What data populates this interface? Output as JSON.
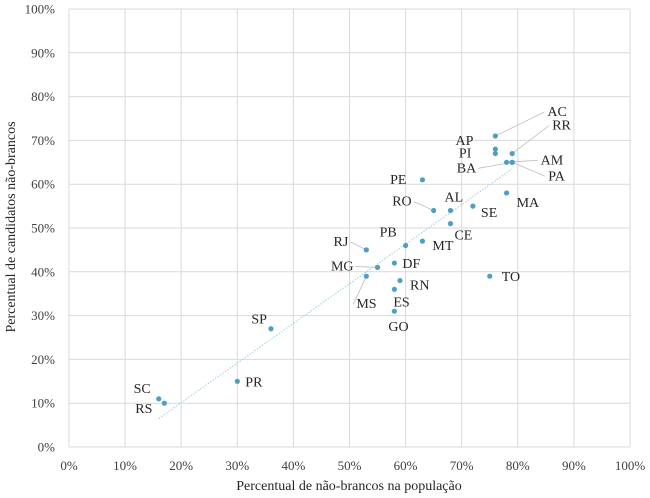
{
  "chart_data": {
    "type": "scatter",
    "xlabel": "Percentual de não-brancos na população",
    "ylabel": "Percentual de candidatos não-brancos",
    "xlim": [
      0,
      100
    ],
    "ylim": [
      0,
      100
    ],
    "x_ticks": [
      "0%",
      "10%",
      "20%",
      "30%",
      "40%",
      "50%",
      "60%",
      "70%",
      "80%",
      "90%",
      "100%"
    ],
    "y_ticks": [
      "0%",
      "10%",
      "20%",
      "30%",
      "40%",
      "50%",
      "60%",
      "70%",
      "80%",
      "90%",
      "100%"
    ],
    "grid": true,
    "trendline": {
      "x": [
        16,
        79
      ],
      "y": [
        6.5,
        63.5
      ],
      "style": "dotted"
    },
    "point_color": "#4f9ec4",
    "points": [
      {
        "label": "AC",
        "x": 76,
        "y": 71
      },
      {
        "label": "AP",
        "x": 76,
        "y": 68
      },
      {
        "label": "RR",
        "x": 79,
        "y": 67
      },
      {
        "label": "PI",
        "x": 76,
        "y": 67
      },
      {
        "label": "AM",
        "x": 78,
        "y": 65
      },
      {
        "label": "BA",
        "x": 79,
        "y": 65
      },
      {
        "label": "PA",
        "x": 79,
        "y": 65
      },
      {
        "label": "PE",
        "x": 63,
        "y": 61
      },
      {
        "label": "MA",
        "x": 78,
        "y": 58
      },
      {
        "label": "AL",
        "x": 68,
        "y": 54
      },
      {
        "label": "SE",
        "x": 72,
        "y": 55
      },
      {
        "label": "RO",
        "x": 65,
        "y": 54
      },
      {
        "label": "CE",
        "x": 68,
        "y": 51
      },
      {
        "label": "PB",
        "x": 60,
        "y": 46
      },
      {
        "label": "MT",
        "x": 63,
        "y": 47
      },
      {
        "label": "RJ",
        "x": 53,
        "y": 45
      },
      {
        "label": "DF",
        "x": 58,
        "y": 42
      },
      {
        "label": "MG",
        "x": 55,
        "y": 41
      },
      {
        "label": "MS",
        "x": 53,
        "y": 39
      },
      {
        "label": "RN",
        "x": 59,
        "y": 38
      },
      {
        "label": "TO",
        "x": 75,
        "y": 39
      },
      {
        "label": "ES",
        "x": 58,
        "y": 36
      },
      {
        "label": "GO",
        "x": 58,
        "y": 31
      },
      {
        "label": "SP",
        "x": 36,
        "y": 27
      },
      {
        "label": "PR",
        "x": 30,
        "y": 15
      },
      {
        "label": "SC",
        "x": 16,
        "y": 11
      },
      {
        "label": "RS",
        "x": 17,
        "y": 10
      }
    ]
  }
}
